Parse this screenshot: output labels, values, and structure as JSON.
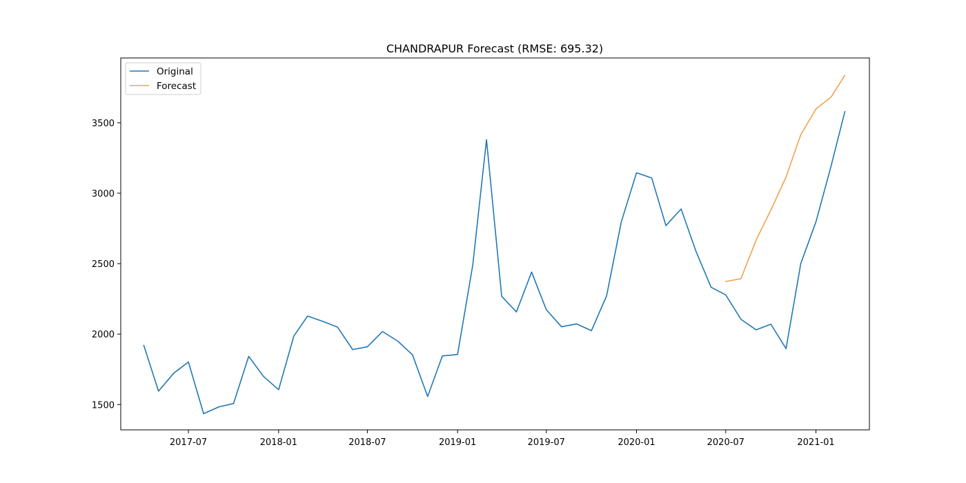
{
  "chart_data": {
    "type": "line",
    "title": "CHANDRAPUR Forecast (RMSE: 695.32)",
    "xlabel": "",
    "ylabel": "",
    "x_ticks": [
      "2017-07",
      "2018-01",
      "2018-07",
      "2019-01",
      "2019-07",
      "2020-01",
      "2020-07",
      "2021-01"
    ],
    "y_ticks": [
      1500,
      2000,
      2500,
      3000,
      3500
    ],
    "xlim": [
      "2017-02-13",
      "2021-04-20"
    ],
    "ylim": [
      1320,
      3960
    ],
    "grid": false,
    "legend_position": "top-left",
    "series": [
      {
        "name": "Original",
        "color": "#1f77b4",
        "x": [
          "2017-04",
          "2017-05",
          "2017-06",
          "2017-07",
          "2017-08",
          "2017-09",
          "2017-10",
          "2017-11",
          "2017-12",
          "2018-01",
          "2018-02",
          "2018-03",
          "2018-04",
          "2018-05",
          "2018-06",
          "2018-07",
          "2018-08",
          "2018-09",
          "2018-10",
          "2018-11",
          "2018-12",
          "2019-01",
          "2019-02",
          "2019-03",
          "2019-04",
          "2019-05",
          "2019-06",
          "2019-07",
          "2019-08",
          "2019-09",
          "2019-10",
          "2019-11",
          "2019-12",
          "2020-01",
          "2020-02",
          "2020-03",
          "2020-04",
          "2020-05",
          "2020-06",
          "2020-07",
          "2020-08",
          "2020-09",
          "2020-10",
          "2020-11",
          "2020-12",
          "2021-01",
          "2021-02",
          "2021-03"
        ],
        "values": [
          1920,
          1595,
          1722,
          1802,
          1435,
          1483,
          1507,
          1842,
          1700,
          1605,
          1985,
          2128,
          2090,
          2050,
          1890,
          1910,
          2018,
          1950,
          1853,
          1557,
          1845,
          1855,
          2490,
          3380,
          2268,
          2157,
          2440,
          2173,
          2052,
          2072,
          2024,
          2272,
          2797,
          3145,
          3108,
          2770,
          2888,
          2590,
          2333,
          2278,
          2105,
          2030,
          2070,
          1897,
          2500,
          2797,
          3195,
          3580
        ]
      },
      {
        "name": "Forecast",
        "color": "#f5a04c",
        "x": [
          "2020-07",
          "2020-08",
          "2020-09",
          "2020-10",
          "2020-11",
          "2020-12",
          "2021-01",
          "2021-02",
          "2021-03"
        ],
        "values": [
          2373,
          2393,
          2668,
          2880,
          3115,
          3415,
          3598,
          3683,
          3837
        ]
      }
    ]
  }
}
